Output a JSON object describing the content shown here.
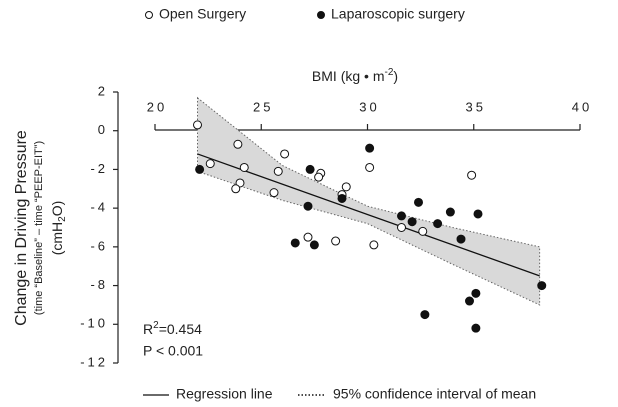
{
  "chart_data": {
    "type": "scatter",
    "x_label": [
      "BMI (kg • m",
      "-2",
      ")"
    ],
    "y_label": [
      "Change in Driving Pressure",
      "(time “Baseline” – time “PEEP-EIT”)"
    ],
    "y_label_unit": [
      "(cmH",
      "2",
      "O)"
    ],
    "annotations": [
      [
        "R",
        "2",
        "=0.454"
      ],
      "P < 0.001"
    ],
    "xlim": [
      20,
      40
    ],
    "xticks": [
      20,
      25,
      30,
      35,
      40
    ],
    "ylim": [
      -12,
      2
    ],
    "yticks": [
      2,
      0,
      -2,
      -4,
      -6,
      -8,
      -10,
      -12
    ],
    "series": [
      {
        "name": "Open Surgery",
        "marker": "open",
        "color": "#111111",
        "x": [
          22.0,
          22.6,
          23.9,
          24.2,
          24.0,
          23.8,
          26.1,
          25.8,
          25.6,
          27.8,
          27.7,
          29.0,
          28.8,
          27.2,
          28.5,
          30.1,
          30.3,
          31.6,
          32.6,
          34.9
        ],
        "values": [
          0.3,
          -1.7,
          -0.7,
          -1.9,
          -2.7,
          -3.0,
          -1.2,
          -2.1,
          -3.2,
          -2.2,
          -2.4,
          -2.9,
          -3.3,
          -5.5,
          -5.7,
          -1.9,
          -5.9,
          -5.0,
          -5.2,
          -2.3
        ]
      },
      {
        "name": "Laparoscopic surgery",
        "marker": "filled",
        "color": "#111111",
        "x": [
          22.1,
          27.3,
          28.8,
          30.1,
          27.2,
          26.6,
          27.5,
          31.6,
          32.4,
          32.1,
          33.3,
          33.9,
          34.4,
          35.2,
          32.7,
          34.8,
          35.1,
          35.1,
          38.2
        ],
        "values": [
          -2.0,
          -2.0,
          -3.5,
          -0.9,
          -3.9,
          -5.8,
          -5.9,
          -4.4,
          -3.7,
          -4.7,
          -4.8,
          -4.2,
          -5.6,
          -4.3,
          -9.5,
          -8.8,
          -8.4,
          -10.2,
          -8.0
        ]
      }
    ],
    "regression": {
      "name": "Regression line",
      "x": [
        22.0,
        38.1
      ],
      "values": [
        -1.2,
        -7.5
      ]
    },
    "confidence": {
      "name": "95% confidence interval of mean",
      "color": "#d9d9d9",
      "x": [
        22.0,
        26.0,
        30.0,
        34.0,
        38.1
      ],
      "upper": [
        1.7,
        -1.8,
        -3.9,
        -5.0,
        -6.0
      ],
      "lower": [
        -2.1,
        -3.6,
        -4.8,
        -6.9,
        -9.0
      ]
    }
  }
}
